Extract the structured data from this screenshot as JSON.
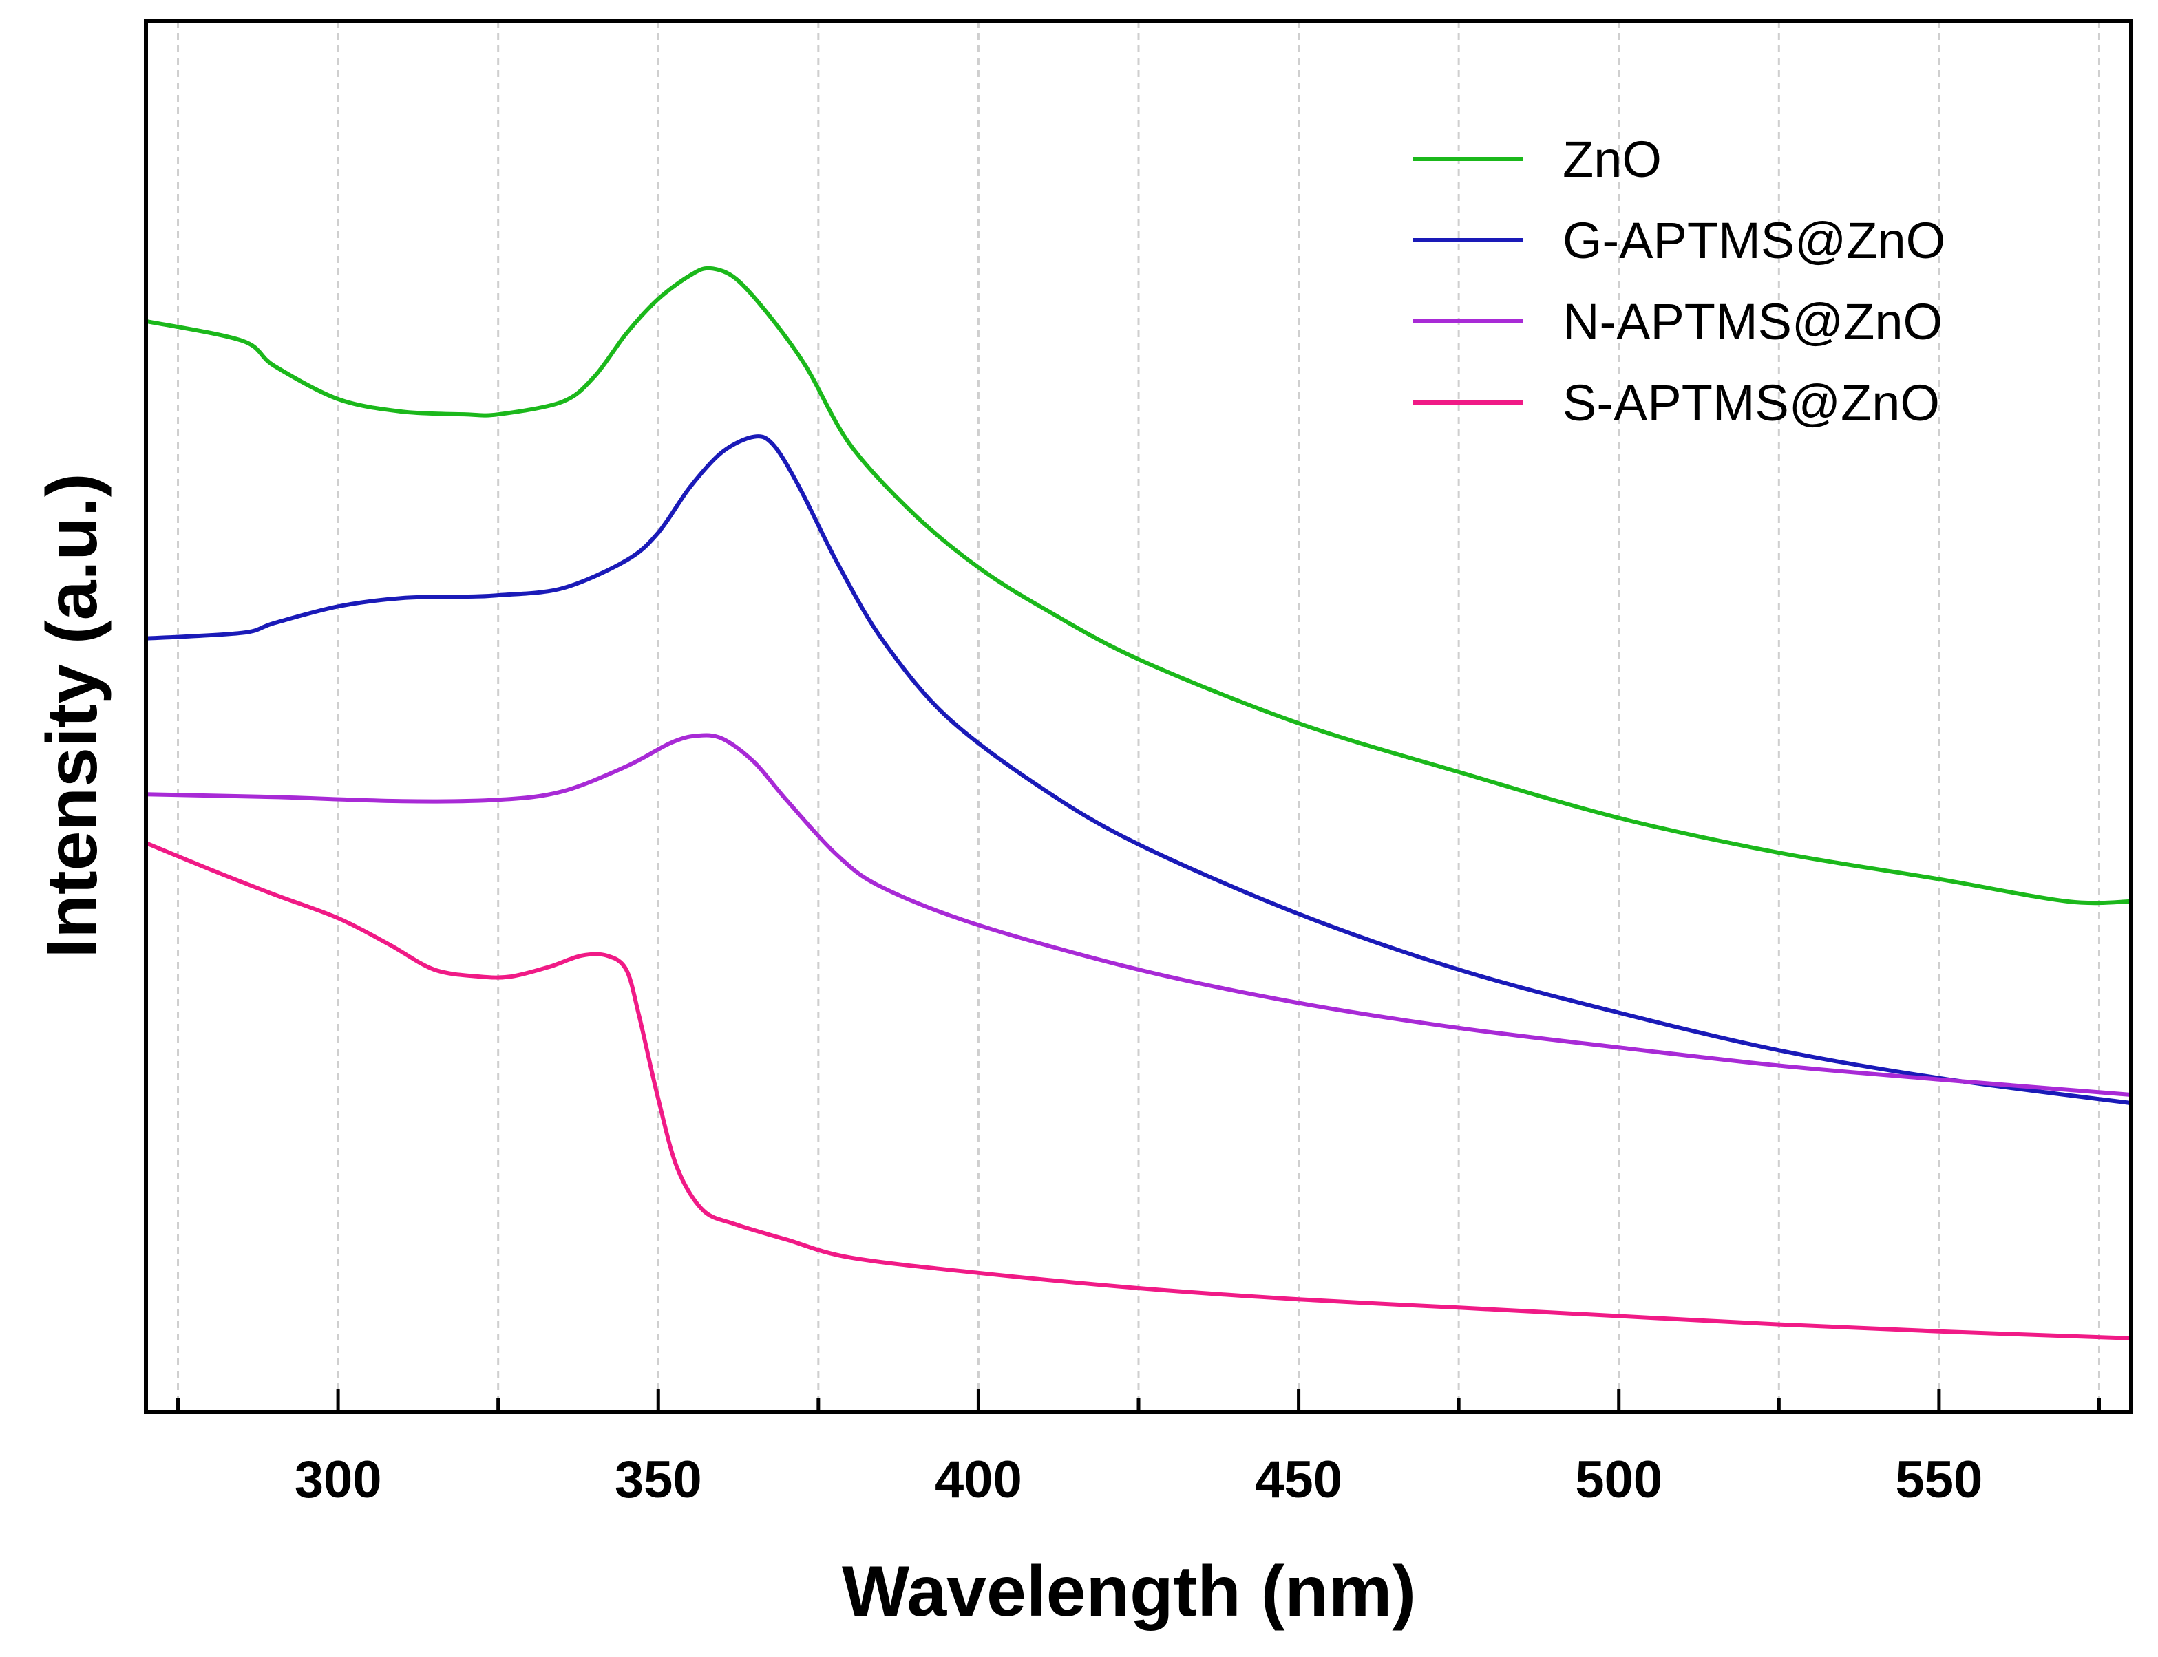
{
  "chart_data": {
    "type": "line",
    "title": "",
    "xlabel": "Wavelength (nm)",
    "ylabel": "Intensity (a.u.)",
    "xlim": [
      270,
      580
    ],
    "ylim": [
      0,
      1
    ],
    "x_ticks": [
      "300",
      "350",
      "400",
      "450",
      "500",
      "550"
    ],
    "y_ticks": [],
    "grid": "vertical dotted",
    "legend_position": "top-right",
    "series": [
      {
        "name": "ZnO",
        "color": "#1bb81b",
        "points": [
          [
            270,
            0.784
          ],
          [
            285,
            0.77
          ],
          [
            290,
            0.752
          ],
          [
            300,
            0.728
          ],
          [
            310,
            0.719
          ],
          [
            320,
            0.717
          ],
          [
            325,
            0.717
          ],
          [
            335,
            0.726
          ],
          [
            340,
            0.744
          ],
          [
            345,
            0.775
          ],
          [
            350,
            0.8
          ],
          [
            355,
            0.817
          ],
          [
            358,
            0.822
          ],
          [
            362,
            0.815
          ],
          [
            367,
            0.79
          ],
          [
            373,
            0.752
          ],
          [
            380,
            0.695
          ],
          [
            390,
            0.645
          ],
          [
            400,
            0.607
          ],
          [
            410,
            0.578
          ],
          [
            425,
            0.541
          ],
          [
            450,
            0.495
          ],
          [
            475,
            0.46
          ],
          [
            500,
            0.427
          ],
          [
            525,
            0.402
          ],
          [
            550,
            0.383
          ],
          [
            570,
            0.367
          ],
          [
            580,
            0.367
          ]
        ]
      },
      {
        "name": "G-APTMS@ZnO",
        "color": "#1a1ab8",
        "points": [
          [
            270,
            0.556
          ],
          [
            285,
            0.56
          ],
          [
            290,
            0.567
          ],
          [
            300,
            0.579
          ],
          [
            310,
            0.585
          ],
          [
            320,
            0.586
          ],
          [
            325,
            0.587
          ],
          [
            335,
            0.592
          ],
          [
            345,
            0.612
          ],
          [
            350,
            0.632
          ],
          [
            355,
            0.665
          ],
          [
            360,
            0.69
          ],
          [
            365,
            0.701
          ],
          [
            368,
            0.695
          ],
          [
            372,
            0.665
          ],
          [
            378,
            0.61
          ],
          [
            385,
            0.555
          ],
          [
            395,
            0.5
          ],
          [
            410,
            0.448
          ],
          [
            425,
            0.408
          ],
          [
            450,
            0.358
          ],
          [
            475,
            0.318
          ],
          [
            500,
            0.287
          ],
          [
            525,
            0.26
          ],
          [
            550,
            0.24
          ],
          [
            580,
            0.222
          ]
        ]
      },
      {
        "name": "N-APTMS@ZnO",
        "color": "#a82ad6",
        "points": [
          [
            270,
            0.444
          ],
          [
            290,
            0.442
          ],
          [
            310,
            0.439
          ],
          [
            325,
            0.44
          ],
          [
            335,
            0.446
          ],
          [
            345,
            0.464
          ],
          [
            352,
            0.481
          ],
          [
            356,
            0.486
          ],
          [
            360,
            0.484
          ],
          [
            365,
            0.467
          ],
          [
            370,
            0.44
          ],
          [
            378,
            0.4
          ],
          [
            385,
            0.377
          ],
          [
            400,
            0.35
          ],
          [
            425,
            0.318
          ],
          [
            450,
            0.294
          ],
          [
            475,
            0.276
          ],
          [
            500,
            0.262
          ],
          [
            525,
            0.249
          ],
          [
            550,
            0.239
          ],
          [
            580,
            0.228
          ]
        ]
      },
      {
        "name": "S-APTMS@ZnO",
        "color": "#f01a86",
        "points": [
          [
            270,
            0.409
          ],
          [
            280,
            0.39
          ],
          [
            290,
            0.372
          ],
          [
            300,
            0.355
          ],
          [
            308,
            0.336
          ],
          [
            315,
            0.318
          ],
          [
            322,
            0.313
          ],
          [
            327,
            0.313
          ],
          [
            333,
            0.32
          ],
          [
            338,
            0.328
          ],
          [
            342,
            0.328
          ],
          [
            345,
            0.318
          ],
          [
            347,
            0.285
          ],
          [
            350,
            0.225
          ],
          [
            353,
            0.175
          ],
          [
            357,
            0.145
          ],
          [
            362,
            0.135
          ],
          [
            370,
            0.124
          ],
          [
            380,
            0.111
          ],
          [
            400,
            0.1
          ],
          [
            425,
            0.089
          ],
          [
            450,
            0.081
          ],
          [
            475,
            0.075
          ],
          [
            500,
            0.069
          ],
          [
            525,
            0.063
          ],
          [
            550,
            0.058
          ],
          [
            580,
            0.053
          ]
        ]
      }
    ]
  }
}
